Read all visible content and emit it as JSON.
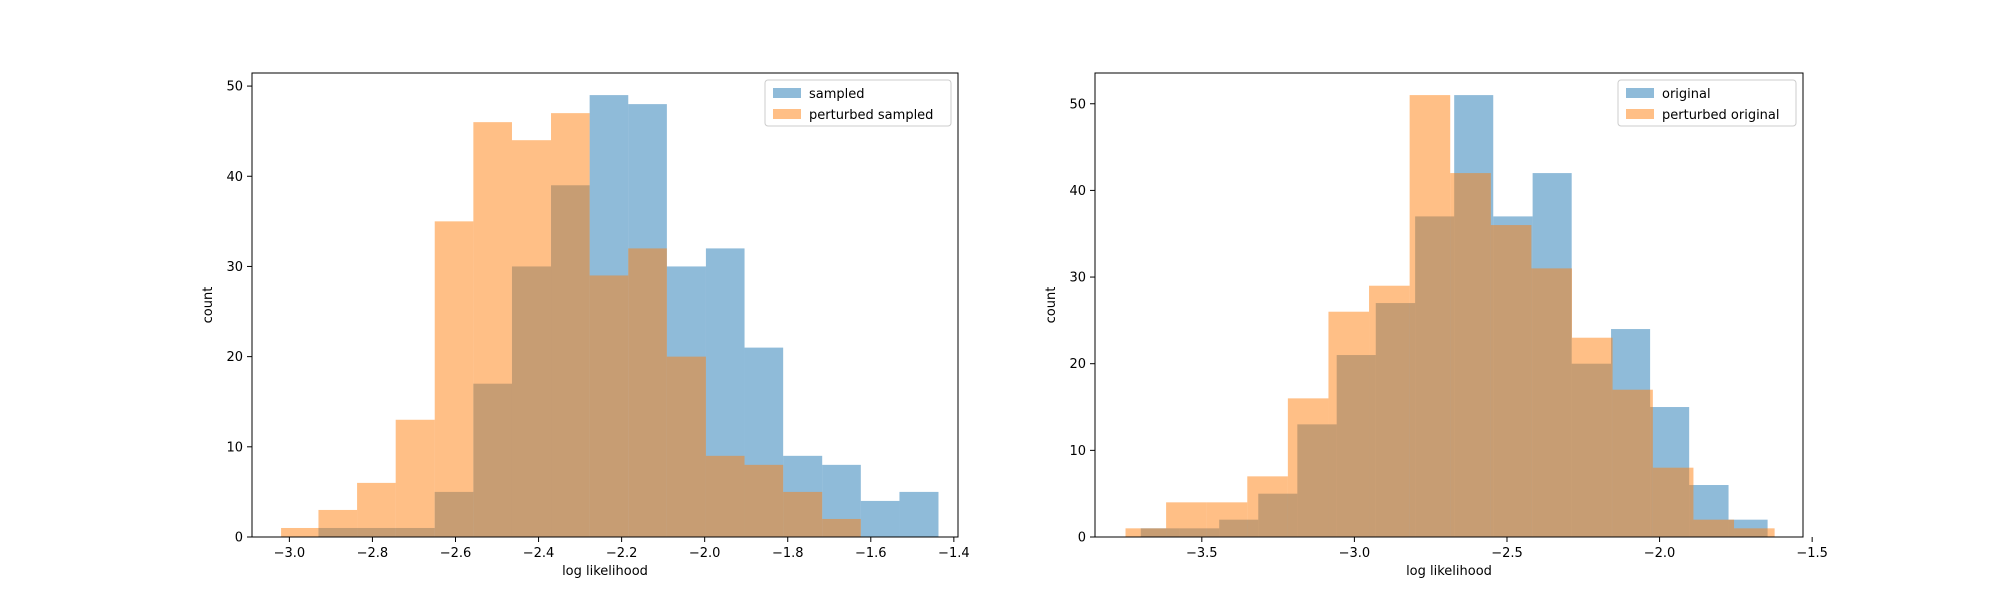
{
  "chart_data": [
    {
      "type": "histogram",
      "title": "",
      "xlabel": "log likelihood",
      "ylabel": "count",
      "xlim": [
        -3.09,
        -1.39
      ],
      "ylim": [
        0,
        51.45
      ],
      "xticks": [
        -3.0,
        -2.8,
        -2.6,
        -2.4,
        -2.2,
        -2.0,
        -1.8,
        -1.6,
        -1.4
      ],
      "xtick_labels": [
        "−3.0",
        "−2.8",
        "−2.6",
        "−2.4",
        "−2.2",
        "−2.0",
        "−1.8",
        "−1.6",
        "−1.4"
      ],
      "yticks": [
        0,
        10,
        20,
        30,
        40,
        50
      ],
      "ytick_labels": [
        "0",
        "10",
        "20",
        "30",
        "40",
        "50"
      ],
      "legend_position": "top-right",
      "grid": false,
      "series": [
        {
          "name": "sampled",
          "color": "#1f77b4",
          "alpha": 0.5,
          "bin_edges": [
            -2.93,
            -2.837,
            -2.744,
            -2.65,
            -2.557,
            -2.464,
            -2.37,
            -2.277,
            -2.184,
            -2.091,
            -1.997,
            -1.904,
            -1.811,
            -1.717,
            -1.624,
            -1.531,
            -1.437
          ],
          "counts": [
            1,
            1,
            1,
            5,
            17,
            30,
            39,
            49,
            48,
            30,
            32,
            21,
            9,
            8,
            4,
            5
          ]
        },
        {
          "name": "perturbed sampled",
          "color": "#ff7f0e",
          "alpha": 0.5,
          "bin_edges": [
            -3.02,
            -2.93,
            -2.837,
            -2.744,
            -2.65,
            -2.557,
            -2.464,
            -2.37,
            -2.277,
            -2.184,
            -2.091,
            -1.997,
            -1.904,
            -1.811,
            -1.717,
            -1.624
          ],
          "counts": [
            1,
            3,
            6,
            13,
            35,
            46,
            44,
            47,
            29,
            32,
            20,
            9,
            8,
            5,
            2
          ]
        }
      ]
    },
    {
      "type": "histogram",
      "title": "",
      "xlabel": "log likelihood",
      "ylabel": "count",
      "xlim": [
        -3.85,
        -1.53
      ],
      "ylim": [
        0,
        53.55
      ],
      "xticks": [
        -3.5,
        -3.0,
        -2.5,
        -2.0,
        -1.5
      ],
      "xtick_labels": [
        "−3.5",
        "−3.0",
        "−2.5",
        "−2.0",
        "−1.5"
      ],
      "yticks": [
        0,
        10,
        20,
        30,
        40,
        50
      ],
      "ytick_labels": [
        "0",
        "10",
        "20",
        "30",
        "40",
        "50"
      ],
      "legend_position": "top-right",
      "grid": false,
      "series": [
        {
          "name": "original",
          "color": "#1f77b4",
          "alpha": 0.5,
          "bin_edges": [
            -3.7,
            -3.572,
            -3.443,
            -3.315,
            -3.187,
            -3.058,
            -2.93,
            -2.801,
            -2.673,
            -2.545,
            -2.416,
            -2.288,
            -2.159,
            -2.031,
            -1.903,
            -1.774,
            -1.646
          ],
          "counts": [
            1,
            1,
            2,
            5,
            13,
            21,
            27,
            37,
            51,
            37,
            42,
            20,
            24,
            15,
            6,
            2
          ]
        },
        {
          "name": "perturbed original",
          "color": "#ff7f0e",
          "alpha": 0.5,
          "bin_edges": [
            -3.75,
            -3.617,
            -3.484,
            -3.351,
            -3.218,
            -3.085,
            -2.952,
            -2.819,
            -2.686,
            -2.553,
            -2.42,
            -2.287,
            -2.154,
            -2.022,
            -1.889,
            -1.756,
            -1.623
          ],
          "counts": [
            1,
            4,
            4,
            7,
            16,
            26,
            29,
            51,
            42,
            36,
            31,
            23,
            17,
            8,
            2,
            1
          ]
        }
      ]
    }
  ]
}
